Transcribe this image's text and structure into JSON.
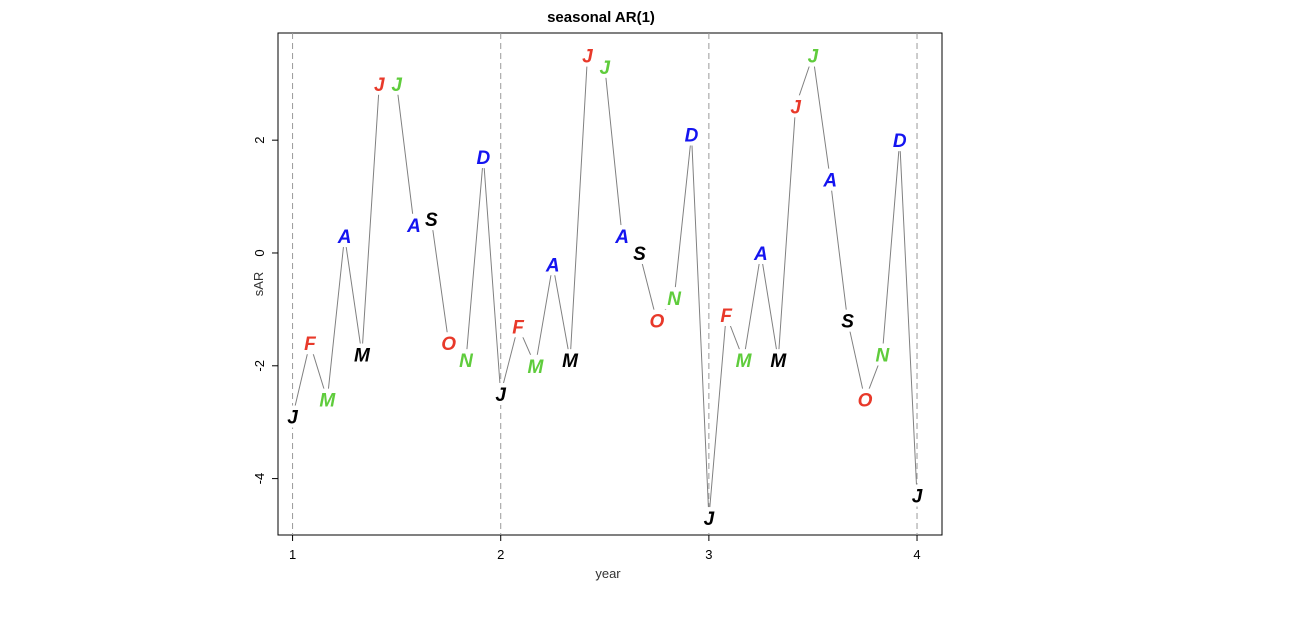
{
  "chart_data": {
    "type": "line",
    "title": "seasonal AR(1)",
    "xlabel": "year",
    "ylabel": "sAR",
    "xlim": [
      0.93,
      4.12
    ],
    "ylim": [
      -5.0,
      3.9
    ],
    "x_ticks": [
      1,
      2,
      3,
      4
    ],
    "x_tick_labels": [
      "1",
      "2",
      "3",
      "4"
    ],
    "y_ticks": [
      -4,
      -2,
      0,
      2
    ],
    "y_tick_labels": [
      "-4",
      "-2",
      "0",
      "2"
    ],
    "vlines": [
      1,
      2,
      3,
      4
    ],
    "grid": false,
    "colors": {
      "line": "#808080",
      "black_months": "#000000",
      "red_months": "#e8392a",
      "green_months": "#5fcc3c",
      "blue_months": "#1414f0",
      "vline": "#999999"
    },
    "series": [
      {
        "x": [
          1.0,
          1.0833,
          1.1667,
          1.25,
          1.3333,
          1.4167,
          1.5,
          1.5833,
          1.6667,
          1.75,
          1.8333,
          1.9167,
          2.0,
          2.0833,
          2.1667,
          2.25,
          2.3333,
          2.4167,
          2.5,
          2.5833,
          2.6667,
          2.75,
          2.8333,
          2.9167,
          3.0,
          3.0833,
          3.1667,
          3.25,
          3.3333,
          3.4167,
          3.5,
          3.5833,
          3.6667,
          3.75,
          3.8333,
          3.9167,
          4.0
        ],
        "values": [
          -2.9,
          -1.6,
          -2.6,
          0.3,
          -1.8,
          3.0,
          3.0,
          0.5,
          0.6,
          -1.6,
          -1.9,
          1.7,
          -2.5,
          -1.3,
          -2.0,
          -0.2,
          -1.9,
          3.5,
          3.3,
          0.3,
          0.0,
          -1.2,
          -0.8,
          2.1,
          -4.7,
          -1.1,
          -1.9,
          0.0,
          -1.9,
          2.6,
          3.5,
          1.3,
          -1.2,
          -2.6,
          -1.8,
          2.0,
          -4.3
        ],
        "labels": [
          "J",
          "F",
          "M",
          "A",
          "M",
          "J",
          "J",
          "A",
          "S",
          "O",
          "N",
          "D",
          "J",
          "F",
          "M",
          "A",
          "M",
          "J",
          "J",
          "A",
          "S",
          "O",
          "N",
          "D",
          "J",
          "F",
          "M",
          "A",
          "M",
          "J",
          "J",
          "A",
          "S",
          "O",
          "N",
          "D",
          "J"
        ]
      }
    ],
    "month_label_colors": [
      "#000000",
      "#e8392a",
      "#5fcc3c",
      "#1414f0",
      "#000000",
      "#e8392a",
      "#5fcc3c",
      "#1414f0",
      "#000000",
      "#e8392a",
      "#5fcc3c",
      "#1414f0"
    ]
  }
}
